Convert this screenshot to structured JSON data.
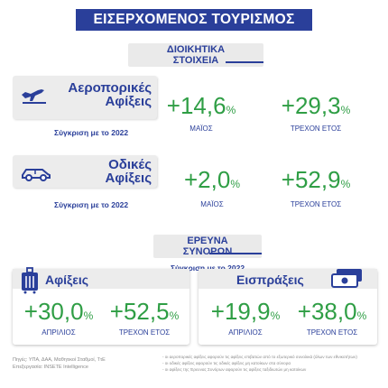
{
  "title": "ΕΙΣΕΡΧΟΜΕΝΟΣ ΤΟΥΡΙΣΜΟΣ",
  "admin_section": {
    "line1": "ΔΙΟΙΚΗΤΙΚΑ",
    "line2": "ΣΤΟΙΧΕΙΑ"
  },
  "air": {
    "label_line1": "Αεροπορικές",
    "label_line2": "Αφίξεις",
    "icon": "airplane-icon",
    "compare": "Σύγκριση με το 2022",
    "stats": [
      {
        "value": "+14,6",
        "unit": "%",
        "label": "ΜΑΪΟΣ"
      },
      {
        "value": "+29,3",
        "unit": "%",
        "label": "ΤΡΕΧΟΝ ΕΤΟΣ"
      }
    ]
  },
  "road": {
    "label_line1": "Οδικές",
    "label_line2": "Αφίξεις",
    "icon": "car-icon",
    "compare": "Σύγκριση με το 2022",
    "stats": [
      {
        "value": "+2,0",
        "unit": "%",
        "label": "ΜΑΪΟΣ"
      },
      {
        "value": "+52,9",
        "unit": "%",
        "label": "ΤΡΕΧΟΝ ΕΤΟΣ"
      }
    ]
  },
  "border_section": {
    "line1": "ΕΡΕΥΝΑ",
    "line2": "ΣΥΝΟΡΩΝ",
    "compare": "Σύγκριση με το 2022"
  },
  "arrivals": {
    "title": "Αφίξεις",
    "icon": "luggage-icon",
    "stats": [
      {
        "value": "+30,0",
        "unit": "%",
        "label": "ΑΠΡΙΛΙΟΣ"
      },
      {
        "value": "+52,5",
        "unit": "%",
        "label": "ΤΡΕΧΟΝ ΕΤΟΣ"
      }
    ]
  },
  "receipts": {
    "title": "Εισπράξεις",
    "icon": "money-icon",
    "stats": [
      {
        "value": "+19,9",
        "unit": "%",
        "label": "ΑΠΡΙΛΙΟΣ"
      },
      {
        "value": "+38,0",
        "unit": "%",
        "label": "ΤΡΕΧΟΝ ΕΤΟΣ"
      }
    ]
  },
  "footer": {
    "source_line1": "Πηγές: ΥΠΑ, ΔΑΑ, Μαθητικοί Σταθμοί, ΤτΕ",
    "source_line2": "Επεξεργασία: INSETE Intelligence",
    "note1": "- οι αεροπορικές αφίξεις αφορούν τις αφίξεις επιβατών από το εξωτερικό συνολικά (όλων των εθνικοτήτων)",
    "note2": "- οι οδικές αφίξεις αφορούν τις οδικές αφίξεις μη κατοίκων στα σύνορα",
    "note3": "- οι αφίξεις της Έρευνας Συνόρων αφορούν τις αφίξεις ταξιδιωτών μη κατοίκων"
  },
  "colors": {
    "primary": "#2a3f9a",
    "positive": "#2f9e45",
    "panel": "#ececec"
  }
}
